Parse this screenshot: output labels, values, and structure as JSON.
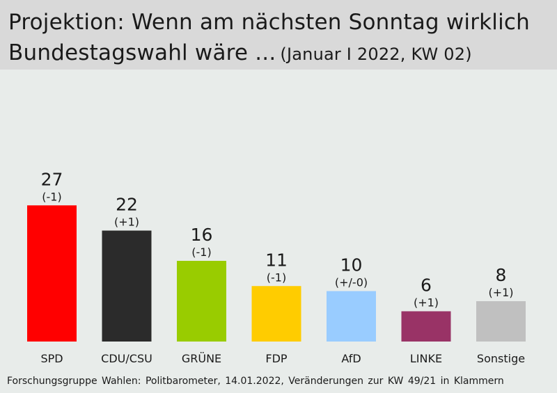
{
  "title": "Projektion: Wenn am nächsten Sonntag wirklich",
  "title_line2": "Bundestagswahl wäre ...",
  "subtitle": "(Januar I 2022, KW 02)",
  "footer": "Forschungsgruppe Wahlen: Politbarometer, 14.01.2022, Veränderungen zur KW 49/21 in Klammern",
  "chart_data": {
    "type": "bar",
    "title": "Projektion: Wenn am nächsten Sonntag wirklich Bundestagswahl wäre ...",
    "subtitle": "(Januar I 2022, KW 02)",
    "categories": [
      "SPD",
      "CDU/CSU",
      "GRÜNE",
      "FDP",
      "AfD",
      "LINKE",
      "Sonstige"
    ],
    "values": [
      27,
      22,
      16,
      11,
      10,
      6,
      8
    ],
    "changes": [
      "(-1)",
      "(+1)",
      "(-1)",
      "(-1)",
      "(+/-0)",
      "(+1)",
      "(+1)"
    ],
    "colors": [
      "#ff0000",
      "#2b2b2b",
      "#99cc00",
      "#ffcc00",
      "#99ccff",
      "#993366",
      "#c0c0c0"
    ],
    "xlabel": "",
    "ylabel": "",
    "grid": false,
    "legend": "none"
  }
}
